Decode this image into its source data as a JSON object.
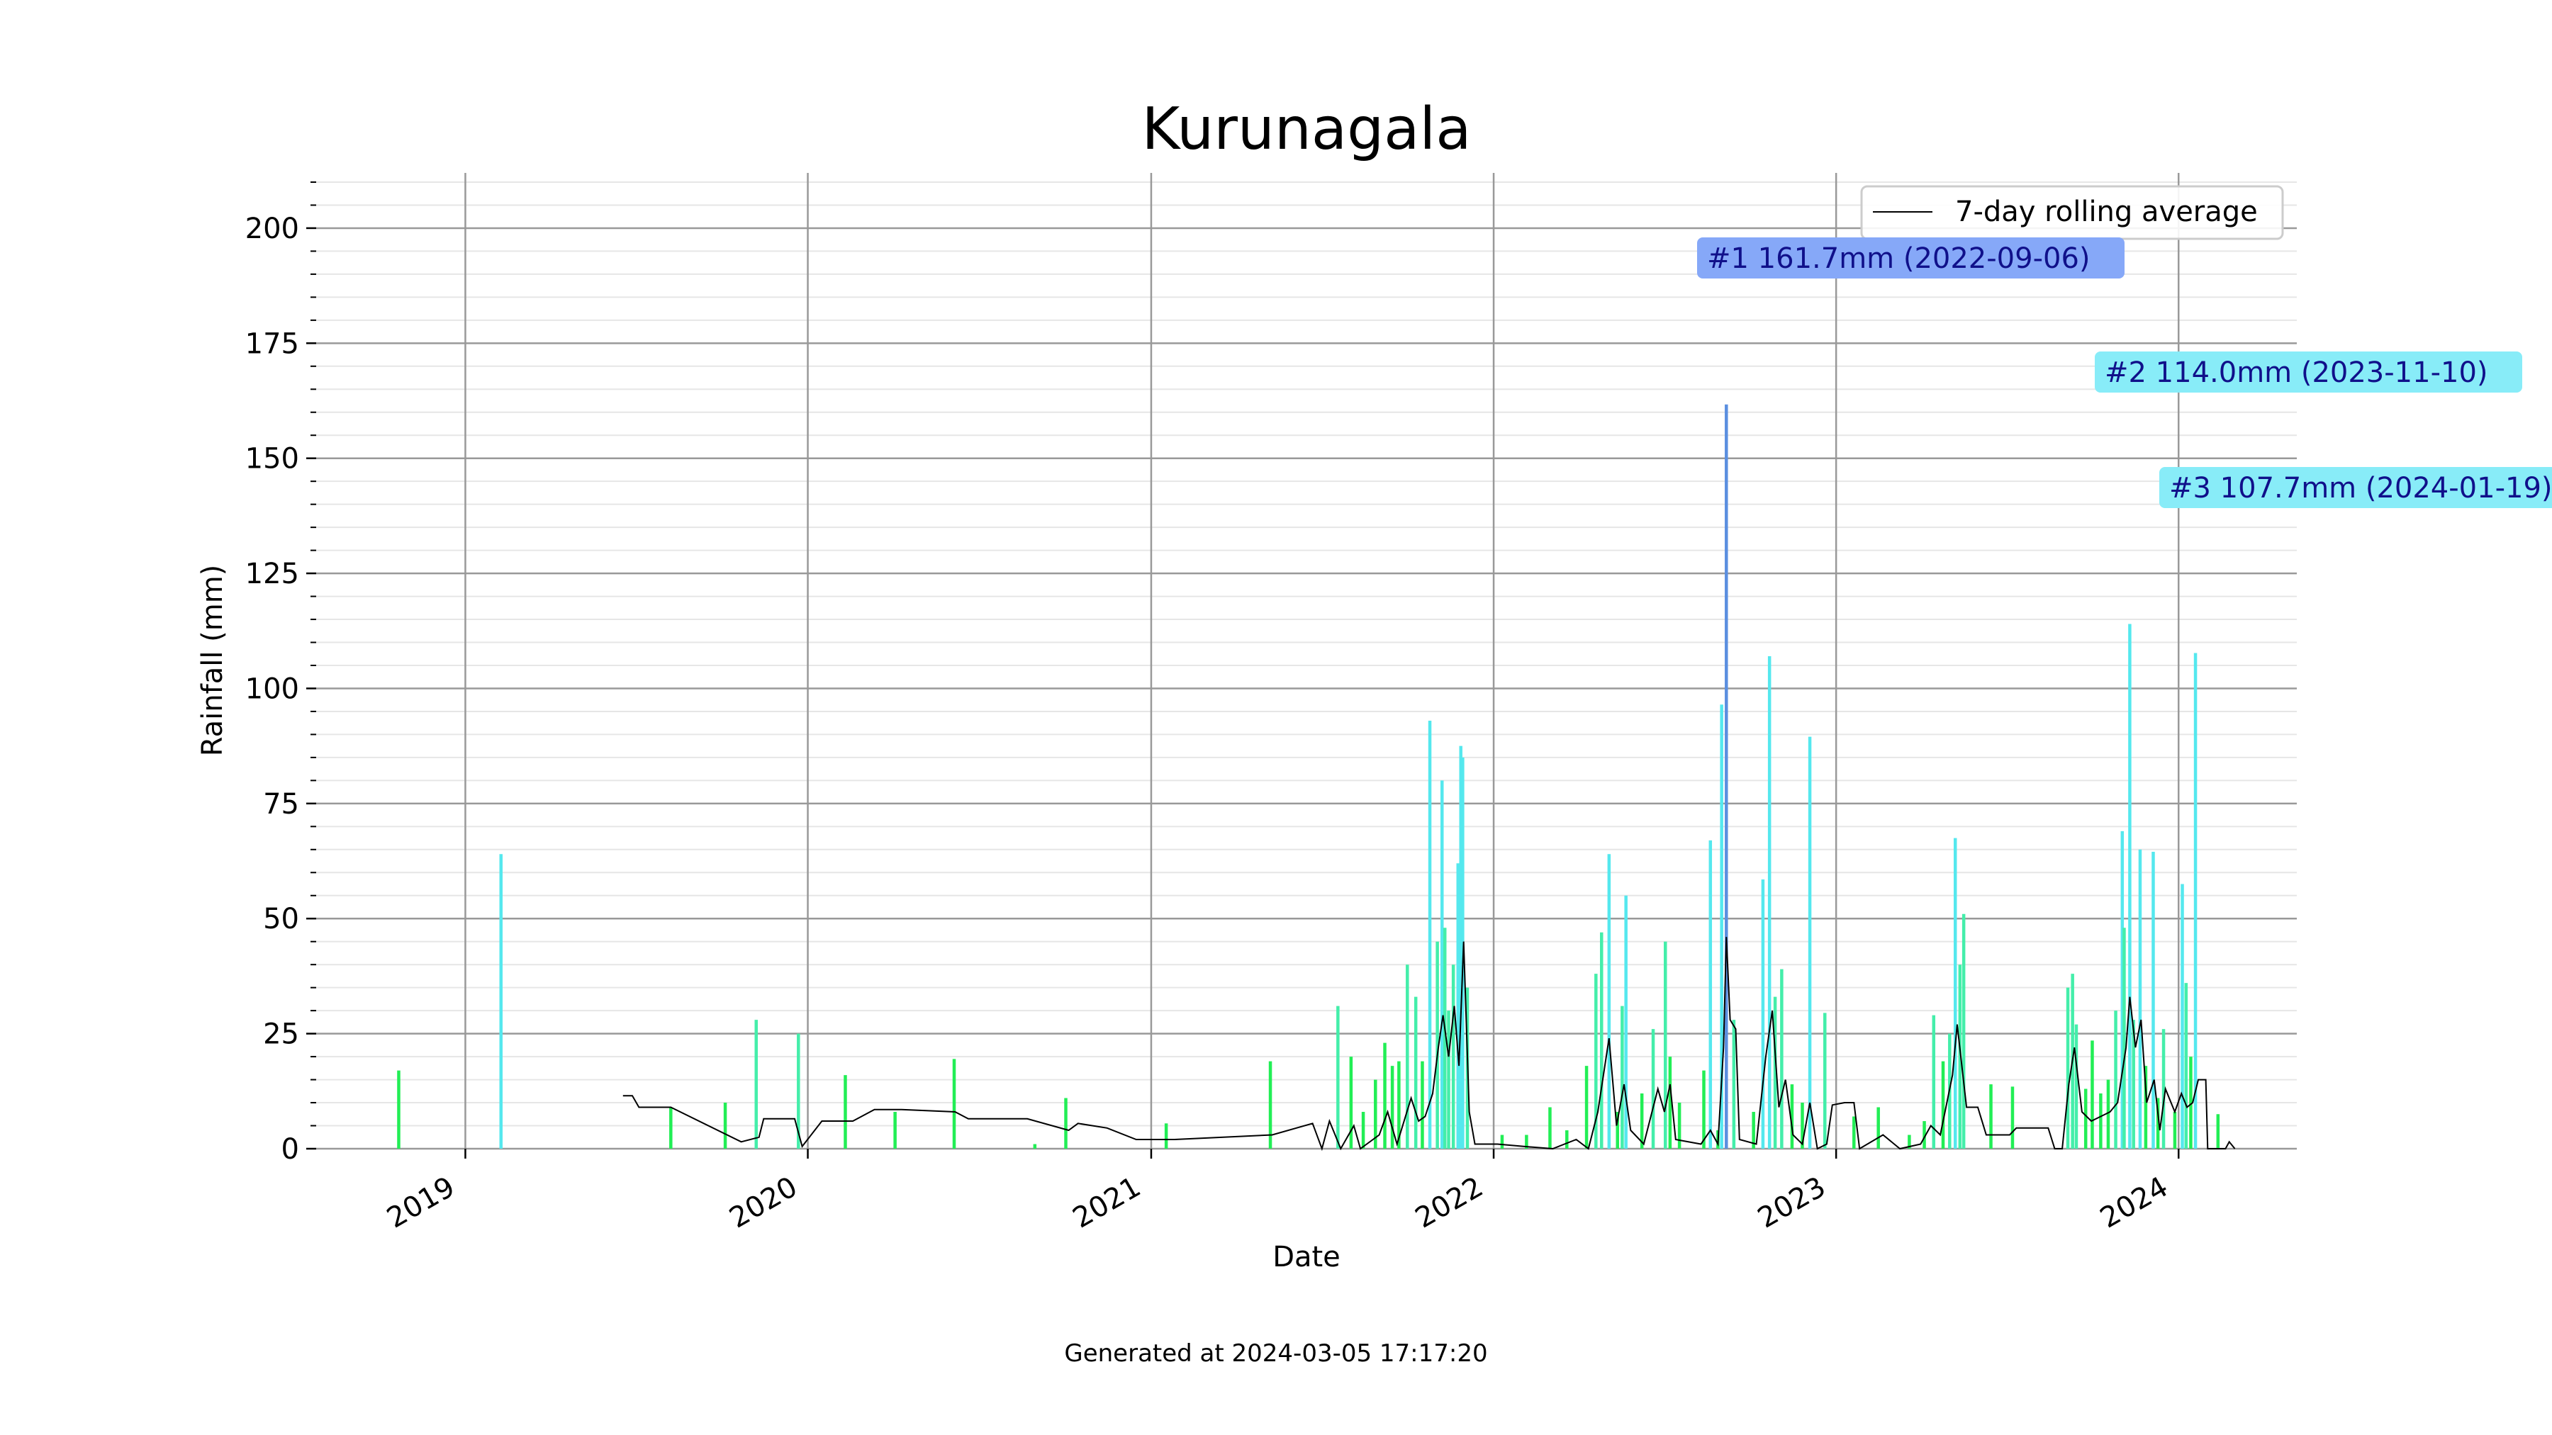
{
  "chart_data": {
    "type": "bar",
    "title": "Kurunagala",
    "xlabel": "Date",
    "ylabel": "Rainfall (mm)",
    "ylim": [
      0,
      212
    ],
    "xlim": [
      "2018-07-26",
      "2024-05-06"
    ],
    "x_ticks": [
      "2019",
      "2020",
      "2021",
      "2022",
      "2023",
      "2024"
    ],
    "y_ticks": [
      0,
      25,
      50,
      75,
      100,
      125,
      150,
      175,
      200
    ],
    "grid": true,
    "legend": {
      "position": "top-right",
      "entries": [
        "7-day rolling average"
      ]
    },
    "series": [
      {
        "name": "Rainfall",
        "points": [
          [
            "2018-10-22",
            17
          ],
          [
            "2019-02-08",
            64
          ],
          [
            "2019-08-08",
            9
          ],
          [
            "2019-10-05",
            10
          ],
          [
            "2019-11-07",
            28
          ],
          [
            "2019-12-22",
            25
          ],
          [
            "2020-02-10",
            16
          ],
          [
            "2020-04-03",
            8
          ],
          [
            "2020-06-05",
            19.5
          ],
          [
            "2020-08-30",
            1
          ],
          [
            "2020-10-02",
            11
          ],
          [
            "2021-01-17",
            5.5
          ],
          [
            "2021-05-08",
            19
          ],
          [
            "2021-07-19",
            31
          ],
          [
            "2021-08-02",
            20
          ],
          [
            "2021-08-15",
            8
          ],
          [
            "2021-08-28",
            15
          ],
          [
            "2021-09-07",
            23
          ],
          [
            "2021-09-15",
            18
          ],
          [
            "2021-09-22",
            19
          ],
          [
            "2021-10-01",
            40
          ],
          [
            "2021-10-10",
            33
          ],
          [
            "2021-10-17",
            19
          ],
          [
            "2021-10-25",
            93
          ],
          [
            "2021-11-02",
            45
          ],
          [
            "2021-11-07",
            80
          ],
          [
            "2021-11-10",
            48
          ],
          [
            "2021-11-14",
            30
          ],
          [
            "2021-11-19",
            40
          ],
          [
            "2021-11-24",
            62
          ],
          [
            "2021-11-27",
            87.5
          ],
          [
            "2021-11-29",
            85
          ],
          [
            "2021-12-04",
            35
          ],
          [
            "2022-01-10",
            3
          ],
          [
            "2022-02-05",
            3
          ],
          [
            "2022-03-02",
            9
          ],
          [
            "2022-03-20",
            4
          ],
          [
            "2022-04-10",
            18
          ],
          [
            "2022-04-20",
            38
          ],
          [
            "2022-04-26",
            47
          ],
          [
            "2022-05-04",
            64
          ],
          [
            "2022-05-13",
            8
          ],
          [
            "2022-05-18",
            31
          ],
          [
            "2022-05-22",
            55
          ],
          [
            "2022-06-08",
            12
          ],
          [
            "2022-06-20",
            26
          ],
          [
            "2022-07-03",
            45
          ],
          [
            "2022-07-08",
            20
          ],
          [
            "2022-07-18",
            10
          ],
          [
            "2022-08-13",
            17
          ],
          [
            "2022-08-20",
            67
          ],
          [
            "2022-08-28",
            4
          ],
          [
            "2022-09-01",
            96.5
          ],
          [
            "2022-09-06",
            161.7
          ],
          [
            "2022-09-14",
            28
          ],
          [
            "2022-10-05",
            8
          ],
          [
            "2022-10-15",
            58.5
          ],
          [
            "2022-10-22",
            107
          ],
          [
            "2022-10-28",
            33
          ],
          [
            "2022-11-04",
            39
          ],
          [
            "2022-11-15",
            14
          ],
          [
            "2022-11-26",
            10
          ],
          [
            "2022-12-04",
            89.5
          ],
          [
            "2022-12-20",
            29.5
          ],
          [
            "2023-01-20",
            7
          ],
          [
            "2023-02-15",
            9
          ],
          [
            "2023-03-20",
            3
          ],
          [
            "2023-04-05",
            6
          ],
          [
            "2023-04-15",
            29
          ],
          [
            "2023-04-25",
            19
          ],
          [
            "2023-05-02",
            25
          ],
          [
            "2023-05-08",
            67.5
          ],
          [
            "2023-05-13",
            40
          ],
          [
            "2023-05-17",
            51
          ],
          [
            "2023-06-15",
            14
          ],
          [
            "2023-07-08",
            13.5
          ],
          [
            "2023-09-05",
            35
          ],
          [
            "2023-09-10",
            38
          ],
          [
            "2023-09-14",
            27
          ],
          [
            "2023-09-24",
            13
          ],
          [
            "2023-10-01",
            23.5
          ],
          [
            "2023-10-10",
            12
          ],
          [
            "2023-10-18",
            15
          ],
          [
            "2023-10-26",
            30
          ],
          [
            "2023-11-02",
            69
          ],
          [
            "2023-11-04",
            48
          ],
          [
            "2023-11-10",
            114
          ],
          [
            "2023-11-14",
            28
          ],
          [
            "2023-11-21",
            65
          ],
          [
            "2023-11-27",
            18
          ],
          [
            "2023-12-05",
            64.5
          ],
          [
            "2023-12-10",
            11
          ],
          [
            "2023-12-16",
            26
          ],
          [
            "2023-12-28",
            8
          ],
          [
            "2024-01-05",
            57.5
          ],
          [
            "2024-01-09",
            36
          ],
          [
            "2024-01-14",
            20
          ],
          [
            "2024-01-19",
            107.7
          ],
          [
            "2024-02-12",
            7.5
          ]
        ]
      },
      {
        "name": "7-day rolling average",
        "points": [
          [
            "2019-06-18",
            11.5
          ],
          [
            "2019-06-28",
            11.5
          ],
          [
            "2019-07-05",
            9
          ],
          [
            "2019-08-08",
            9
          ],
          [
            "2019-10-22",
            1.5
          ],
          [
            "2019-11-10",
            2.5
          ],
          [
            "2019-11-15",
            6.5
          ],
          [
            "2019-12-18",
            6.5
          ],
          [
            "2019-12-26",
            0.5
          ],
          [
            "2020-01-16",
            6
          ],
          [
            "2020-02-18",
            6
          ],
          [
            "2020-03-12",
            8.5
          ],
          [
            "2020-04-10",
            8.5
          ],
          [
            "2020-06-06",
            8
          ],
          [
            "2020-06-20",
            6.5
          ],
          [
            "2020-08-22",
            6.5
          ],
          [
            "2020-10-05",
            4
          ],
          [
            "2020-10-15",
            5.5
          ],
          [
            "2020-11-15",
            4.5
          ],
          [
            "2020-12-16",
            2
          ],
          [
            "2021-01-26",
            2
          ],
          [
            "2021-05-10",
            3
          ],
          [
            "2021-06-22",
            5.5
          ],
          [
            "2021-07-02",
            0
          ],
          [
            "2021-07-10",
            6
          ],
          [
            "2021-07-16",
            3
          ],
          [
            "2021-07-22",
            0
          ],
          [
            "2021-08-05",
            5
          ],
          [
            "2021-08-12",
            0
          ],
          [
            "2021-09-01",
            3
          ],
          [
            "2021-09-10",
            8
          ],
          [
            "2021-09-20",
            1
          ],
          [
            "2021-10-05",
            11
          ],
          [
            "2021-10-13",
            6
          ],
          [
            "2021-10-20",
            7
          ],
          [
            "2021-10-28",
            12
          ],
          [
            "2021-11-03",
            22
          ],
          [
            "2021-11-08",
            29
          ],
          [
            "2021-11-14",
            20
          ],
          [
            "2021-11-20",
            31
          ],
          [
            "2021-11-25",
            18
          ],
          [
            "2021-11-30",
            45
          ],
          [
            "2021-12-06",
            8
          ],
          [
            "2021-12-12",
            1
          ],
          [
            "2022-01-05",
            1
          ],
          [
            "2022-02-02",
            0.5
          ],
          [
            "2022-03-05",
            0
          ],
          [
            "2022-03-30",
            2
          ],
          [
            "2022-04-12",
            0
          ],
          [
            "2022-04-22",
            8
          ],
          [
            "2022-05-04",
            24
          ],
          [
            "2022-05-12",
            5
          ],
          [
            "2022-05-20",
            14
          ],
          [
            "2022-05-27",
            4
          ],
          [
            "2022-06-10",
            1
          ],
          [
            "2022-06-25",
            13
          ],
          [
            "2022-07-02",
            8
          ],
          [
            "2022-07-08",
            14
          ],
          [
            "2022-07-14",
            2
          ],
          [
            "2022-08-10",
            1
          ],
          [
            "2022-08-20",
            4
          ],
          [
            "2022-08-28",
            1
          ],
          [
            "2022-09-03",
            22
          ],
          [
            "2022-09-06",
            46
          ],
          [
            "2022-09-10",
            28
          ],
          [
            "2022-09-16",
            26
          ],
          [
            "2022-09-20",
            2
          ],
          [
            "2022-10-08",
            1
          ],
          [
            "2022-10-18",
            20
          ],
          [
            "2022-10-25",
            30
          ],
          [
            "2022-11-01",
            9
          ],
          [
            "2022-11-08",
            15
          ],
          [
            "2022-11-16",
            3
          ],
          [
            "2022-11-26",
            1
          ],
          [
            "2022-12-04",
            10
          ],
          [
            "2022-12-12",
            0
          ],
          [
            "2022-12-22",
            1
          ],
          [
            "2022-12-28",
            9.5
          ],
          [
            "2023-01-10",
            10
          ],
          [
            "2023-01-20",
            10
          ],
          [
            "2023-01-26",
            0
          ],
          [
            "2023-02-20",
            3
          ],
          [
            "2023-03-10",
            0
          ],
          [
            "2023-04-01",
            1
          ],
          [
            "2023-04-12",
            5
          ],
          [
            "2023-04-22",
            3
          ],
          [
            "2023-05-05",
            16
          ],
          [
            "2023-05-10",
            27
          ],
          [
            "2023-05-20",
            9
          ],
          [
            "2023-06-01",
            9
          ],
          [
            "2023-06-10",
            3
          ],
          [
            "2023-07-05",
            3
          ],
          [
            "2023-07-12",
            4.5
          ],
          [
            "2023-08-15",
            4.5
          ],
          [
            "2023-08-22",
            0
          ],
          [
            "2023-08-30",
            0
          ],
          [
            "2023-09-06",
            14
          ],
          [
            "2023-09-12",
            22
          ],
          [
            "2023-09-20",
            8
          ],
          [
            "2023-09-30",
            6
          ],
          [
            "2023-10-10",
            7
          ],
          [
            "2023-10-20",
            8
          ],
          [
            "2023-10-28",
            10
          ],
          [
            "2023-11-06",
            22
          ],
          [
            "2023-11-10",
            33
          ],
          [
            "2023-11-16",
            22
          ],
          [
            "2023-11-22",
            28
          ],
          [
            "2023-11-28",
            10
          ],
          [
            "2023-12-06",
            15
          ],
          [
            "2023-12-12",
            4
          ],
          [
            "2023-12-18",
            13
          ],
          [
            "2023-12-28",
            8
          ],
          [
            "2024-01-04",
            12
          ],
          [
            "2024-01-10",
            9
          ],
          [
            "2024-01-16",
            10
          ],
          [
            "2024-01-22",
            15
          ],
          [
            "2024-01-30",
            15
          ],
          [
            "2024-02-01",
            0
          ],
          [
            "2024-02-20",
            0
          ],
          [
            "2024-02-24",
            1.5
          ],
          [
            "2024-03-01",
            0
          ]
        ]
      }
    ],
    "annotations": [
      {
        "text": "#1 161.7mm (2022-09-06)",
        "date": "2022-09-06",
        "value": 161.7,
        "color": "#86a8f8"
      },
      {
        "text": "#2 114.0mm (2023-11-10)",
        "date": "2023-11-10",
        "value": 114.0,
        "color": "#88ecf8"
      },
      {
        "text": "#3 107.7mm (2024-01-19)",
        "date": "2024-01-19",
        "value": 107.7,
        "color": "#88ecf8"
      }
    ],
    "colors": {
      "bar_low": "#22ee55",
      "bar_mid": "#44eeaa",
      "bar_high": "#55e8ee",
      "bar_top": "#5b8fe0",
      "rolling_line": "#000000",
      "grid_major": "#999999",
      "grid_minor": "#e6e6e6"
    }
  },
  "footer": "Generated at 2024-03-05 17:17:20"
}
